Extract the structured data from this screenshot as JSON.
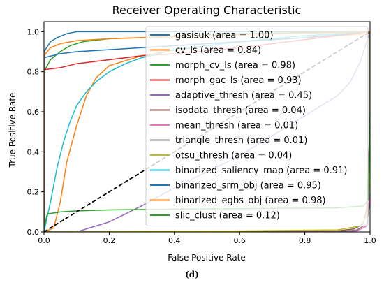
{
  "caption": "(d)",
  "chart_data": {
    "type": "line",
    "title": "Receiver Operating Characteristic",
    "xlabel": "False Positive Rate",
    "ylabel": "True Positive Rate",
    "xlim": [
      0,
      1
    ],
    "ylim": [
      0,
      1.05
    ],
    "xticks": [
      0.0,
      0.2,
      0.4,
      0.6,
      0.8,
      1.0
    ],
    "yticks": [
      0.0,
      0.2,
      0.4,
      0.6,
      0.8,
      1.0
    ],
    "xtick_labels": [
      "0.0",
      "0.2",
      "0.4",
      "0.6",
      "0.8",
      "1.0"
    ],
    "ytick_labels": [
      "0.0",
      "0.2",
      "0.4",
      "0.6",
      "0.8",
      "1.0"
    ],
    "grid": false,
    "legend_position": "top-right",
    "diagonal_reference": {
      "x": [
        0,
        1
      ],
      "y": [
        0,
        1
      ],
      "style": "dashed"
    },
    "series": [
      {
        "name": "gasisuk (area = 1.00)",
        "color": "#1f77b4",
        "x": [
          0,
          0.0,
          0.02,
          0.04,
          0.07,
          0.1,
          0.13,
          0.2,
          0.5,
          1.0
        ],
        "y": [
          0,
          0.9,
          0.95,
          0.97,
          0.99,
          1.0,
          1.0,
          1.0,
          1.0,
          1.0
        ]
      },
      {
        "name": "cv_ls (area = 0.84)",
        "color": "#ff7f0e",
        "x": [
          0,
          0.0,
          0.03,
          0.05,
          0.07,
          0.1,
          0.13,
          0.16,
          0.2,
          0.3,
          0.45,
          0.6,
          0.8,
          1.0,
          1.0
        ],
        "y": [
          0,
          0.0,
          0.02,
          0.15,
          0.35,
          0.53,
          0.68,
          0.77,
          0.83,
          0.88,
          0.92,
          0.95,
          0.97,
          0.99,
          1.0
        ]
      },
      {
        "name": "morph_cv_ls (area = 0.98)",
        "color": "#2ca02c",
        "x": [
          0,
          0.0,
          0.02,
          0.05,
          0.08,
          0.12,
          0.2,
          0.3,
          0.6,
          1.0
        ],
        "y": [
          0,
          0.8,
          0.86,
          0.9,
          0.93,
          0.95,
          0.965,
          0.97,
          0.99,
          1.0
        ]
      },
      {
        "name": "morph_gac_ls (area = 0.93)",
        "color": "#d62728",
        "x": [
          0,
          0.0,
          0.05,
          0.1,
          0.2,
          0.3,
          0.4,
          0.6,
          0.8,
          1.0
        ],
        "y": [
          0,
          0.81,
          0.82,
          0.84,
          0.86,
          0.88,
          0.89,
          0.92,
          0.96,
          1.0
        ]
      },
      {
        "name": "adaptive_thresh (area = 0.45)",
        "color": "#9467bd",
        "x": [
          0,
          0.1,
          0.2,
          0.3,
          0.4,
          0.5,
          0.6,
          0.7,
          0.8,
          0.9,
          0.94,
          0.97,
          1.0
        ],
        "y": [
          0,
          0.0,
          0.05,
          0.13,
          0.22,
          0.3,
          0.38,
          0.48,
          0.58,
          0.68,
          0.75,
          0.85,
          1.0
        ]
      },
      {
        "name": "isodata_thresh (area = 0.04)",
        "color": "#8c564b",
        "x": [
          0,
          0.5,
          0.9,
          0.95,
          0.98,
          0.99,
          1.0,
          1.0
        ],
        "y": [
          0,
          0.0,
          0.005,
          0.015,
          0.04,
          0.12,
          0.55,
          1.0
        ]
      },
      {
        "name": "mean_thresh (area = 0.01)",
        "color": "#e377c2",
        "x": [
          0,
          0.5,
          0.9,
          0.96,
          0.99,
          1.0,
          1.0
        ],
        "y": [
          0,
          0.0,
          0.0,
          0.005,
          0.03,
          0.2,
          1.0
        ]
      },
      {
        "name": "triangle_thresh (area = 0.01)",
        "color": "#7f7f7f",
        "x": [
          0,
          0.5,
          0.9,
          0.96,
          0.99,
          1.0,
          1.0
        ],
        "y": [
          0,
          0.0,
          0.0,
          0.01,
          0.04,
          0.15,
          1.0
        ]
      },
      {
        "name": "otsu_thresh (area = 0.04)",
        "color": "#bcbd22",
        "x": [
          0,
          0.3,
          0.6,
          0.9,
          0.97,
          0.99,
          1.0,
          1.0
        ],
        "y": [
          0,
          0.003,
          0.005,
          0.01,
          0.03,
          0.08,
          0.3,
          1.0
        ]
      },
      {
        "name": "binarized_saliency_map (area = 0.91)",
        "color": "#17becf",
        "x": [
          0,
          0.0,
          0.02,
          0.04,
          0.06,
          0.08,
          0.1,
          0.13,
          0.16,
          0.2,
          0.25,
          0.3,
          0.4,
          0.6,
          0.8,
          1.0
        ],
        "y": [
          0,
          0.0,
          0.15,
          0.32,
          0.45,
          0.55,
          0.63,
          0.7,
          0.75,
          0.8,
          0.84,
          0.87,
          0.91,
          0.95,
          0.98,
          1.0
        ]
      },
      {
        "name": "binarized_srm_obj (area = 0.95)",
        "color": "#1f77b4",
        "x": [
          0,
          0.0,
          0.05,
          0.1,
          0.2,
          0.3,
          0.4,
          0.6,
          0.8,
          1.0
        ],
        "y": [
          0,
          0.87,
          0.89,
          0.9,
          0.91,
          0.92,
          0.93,
          0.95,
          0.97,
          1.0
        ]
      },
      {
        "name": "binarized_egbs_obj (area = 0.98)",
        "color": "#ff7f0e",
        "x": [
          0,
          0.0,
          0.02,
          0.05,
          0.1,
          0.2,
          0.3,
          0.5,
          0.7,
          0.9,
          1.0
        ],
        "y": [
          0,
          0.88,
          0.92,
          0.94,
          0.955,
          0.965,
          0.97,
          0.98,
          0.99,
          0.995,
          1.0
        ]
      },
      {
        "name": "slic_clust (area = 0.12)",
        "color": "#2ca02c",
        "x": [
          0,
          0.0,
          0.01,
          0.05,
          0.1,
          0.2,
          0.5,
          0.9,
          0.98,
          0.995,
          1.0,
          1.0
        ],
        "y": [
          0,
          0.02,
          0.09,
          0.1,
          0.105,
          0.11,
          0.115,
          0.12,
          0.13,
          0.16,
          0.6,
          1.0
        ]
      }
    ]
  }
}
